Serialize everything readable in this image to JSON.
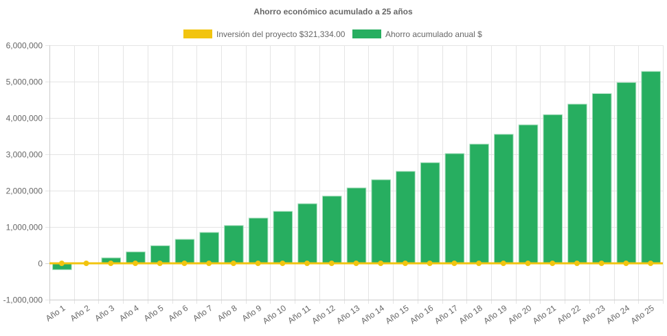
{
  "chart_data": {
    "type": "bar",
    "title": "Ahorro económico acumulado a 25 años",
    "xlabel": "",
    "ylabel": "",
    "ylim": [
      -1000000,
      6000000
    ],
    "yticks": [
      -1000000,
      0,
      1000000,
      2000000,
      3000000,
      4000000,
      5000000,
      6000000
    ],
    "ytick_labels": [
      "-1,000,000",
      "0",
      "1,000,000",
      "2,000,000",
      "3,000,000",
      "4,000,000",
      "5,000,000",
      "6,000,000"
    ],
    "grid": true,
    "legend_position": "top",
    "categories": [
      "Año 1",
      "Año 2",
      "Año 3",
      "Año 4",
      "Año 5",
      "Año 6",
      "Año 7",
      "Año 8",
      "Año 9",
      "Año 10",
      "Año 11",
      "Año 12",
      "Año 13",
      "Año 14",
      "Año 15",
      "Año 16",
      "Año 17",
      "Año 18",
      "Año 19",
      "Año 20",
      "Año 21",
      "Año 22",
      "Año 23",
      "Año 24",
      "Año 25"
    ],
    "series": [
      {
        "name": "Inversión del proyecto $321,334.00",
        "type": "line",
        "color": "#f2c40f",
        "values": [
          0,
          0,
          0,
          0,
          0,
          0,
          0,
          0,
          0,
          0,
          0,
          0,
          0,
          0,
          0,
          0,
          0,
          0,
          0,
          0,
          0,
          0,
          0,
          0,
          0
        ]
      },
      {
        "name": "Ahorro acumulado anual $",
        "type": "bar",
        "color": "#27ae60",
        "values": [
          -175000,
          0,
          150000,
          315000,
          485000,
          660000,
          850000,
          1040000,
          1245000,
          1430000,
          1640000,
          1850000,
          2075000,
          2300000,
          2530000,
          2770000,
          3020000,
          3280000,
          3550000,
          3810000,
          4090000,
          4380000,
          4670000,
          4975000,
          5280000
        ]
      }
    ]
  }
}
